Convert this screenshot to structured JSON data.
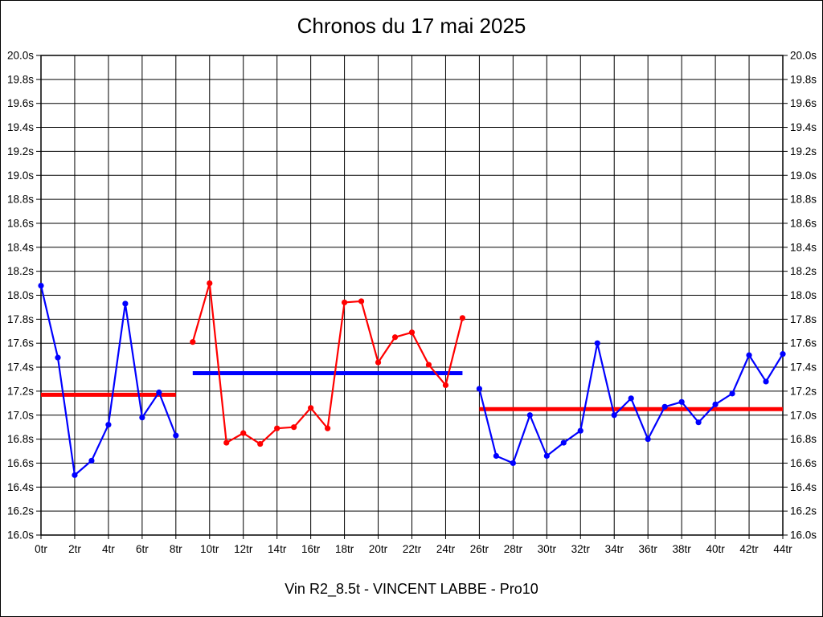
{
  "page": {
    "title": "Chronos du 17 mai 2025",
    "footer": "Vin R2_8.5t - VINCENT LABBE - Pro10"
  },
  "chart_data": {
    "type": "line",
    "title": "Chronos du 17 mai 2025",
    "subtitle": "Vin R2_8.5t - VINCENT LABBE - Pro10",
    "x_unit": "tr",
    "y_unit": "s",
    "xlim": [
      0,
      44
    ],
    "ylim": [
      16.0,
      20.0
    ],
    "x_ticks": [
      0,
      2,
      4,
      6,
      8,
      10,
      12,
      14,
      16,
      18,
      20,
      22,
      24,
      26,
      28,
      30,
      32,
      34,
      36,
      38,
      40,
      42,
      44
    ],
    "y_ticks": [
      16.0,
      16.2,
      16.4,
      16.6,
      16.8,
      17.0,
      17.2,
      17.4,
      17.6,
      17.8,
      18.0,
      18.2,
      18.4,
      18.6,
      18.8,
      19.0,
      19.2,
      19.4,
      19.6,
      19.8,
      20.0
    ],
    "grid": "both",
    "legend": "none",
    "colors": {
      "grid": "#000000",
      "blue_series": "#0000ff",
      "red_series": "#ff0000",
      "background": "#ffffff",
      "text": "#000000"
    },
    "series": [
      {
        "name": "stint-1",
        "color": "#0000ff",
        "laps": [
          0,
          1,
          2,
          3,
          4,
          5,
          6,
          7,
          8
        ],
        "values": [
          18.08,
          17.48,
          16.5,
          16.62,
          16.92,
          17.93,
          16.98,
          17.19,
          16.83
        ]
      },
      {
        "name": "stint-2",
        "color": "#ff0000",
        "laps": [
          9,
          10,
          11,
          12,
          13,
          14,
          15,
          16,
          17,
          18,
          19,
          20,
          21,
          22,
          23,
          24,
          25
        ],
        "values": [
          17.61,
          18.1,
          16.77,
          16.85,
          16.76,
          16.89,
          16.9,
          17.06,
          16.89,
          17.94,
          17.95,
          17.44,
          17.65,
          17.69,
          17.42,
          17.25,
          17.81
        ]
      },
      {
        "name": "stint-3",
        "color": "#0000ff",
        "laps": [
          26,
          27,
          28,
          29,
          30,
          31,
          32,
          33,
          34,
          35,
          36,
          37,
          38,
          39,
          40,
          41,
          42,
          43,
          44
        ],
        "values": [
          17.22,
          16.66,
          16.6,
          17.0,
          16.66,
          16.77,
          16.87,
          17.6,
          17.0,
          17.14,
          16.8,
          17.07,
          17.11,
          16.94,
          17.09,
          17.18,
          17.5,
          17.28,
          17.51
        ]
      }
    ],
    "average_lines": [
      {
        "name": "average-stint-1",
        "color": "#ff0000",
        "lap_start": 0,
        "lap_end": 8,
        "value": 17.17
      },
      {
        "name": "average-stint-2",
        "color": "#0000ff",
        "lap_start": 9,
        "lap_end": 25,
        "value": 17.35
      },
      {
        "name": "average-stint-3",
        "color": "#ff0000",
        "lap_start": 26,
        "lap_end": 44,
        "value": 17.05
      }
    ]
  }
}
